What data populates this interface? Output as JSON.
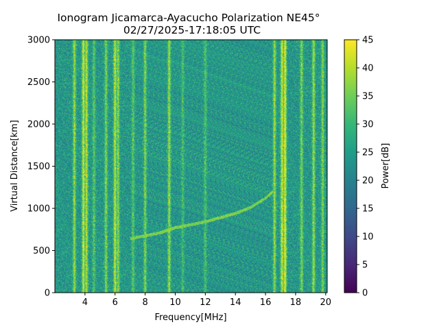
{
  "chart_data": {
    "type": "heatmap",
    "title": "Ionogram Jicamarca-Ayacucho Polarization NE45°",
    "subtitle": "02/27/2025-17:18:05 UTC",
    "xlabel": "Frequency[MHz]",
    "ylabel": "Virtual Distance[km]",
    "xlim": [
      2.0,
      20.1
    ],
    "ylim": [
      0,
      3000
    ],
    "xticks": [
      4,
      6,
      8,
      10,
      12,
      14,
      16,
      18,
      20
    ],
    "yticks": [
      0,
      500,
      1000,
      1500,
      2000,
      2500,
      3000
    ],
    "colorbar": {
      "label": "Power[dB]",
      "range": [
        0,
        45
      ],
      "ticks": [
        0,
        5,
        10,
        15,
        20,
        25,
        30,
        35,
        40,
        45
      ],
      "colormap": "viridis",
      "colors": [
        "#440154",
        "#482878",
        "#3e4a89",
        "#31688e",
        "#26828e",
        "#1f9e89",
        "#35b779",
        "#6ece58",
        "#b5de2b",
        "#fde725"
      ]
    },
    "background_power_db": 24,
    "bright_bands": [
      {
        "freq_mhz": 3.3,
        "power_db": 38
      },
      {
        "freq_mhz": 3.9,
        "power_db": 42
      },
      {
        "freq_mhz": 4.1,
        "power_db": 40
      },
      {
        "freq_mhz": 4.6,
        "power_db": 33
      },
      {
        "freq_mhz": 5.4,
        "power_db": 36
      },
      {
        "freq_mhz": 6.0,
        "power_db": 41
      },
      {
        "freq_mhz": 6.2,
        "power_db": 37
      },
      {
        "freq_mhz": 7.2,
        "power_db": 33
      },
      {
        "freq_mhz": 8.0,
        "power_db": 36
      },
      {
        "freq_mhz": 9.6,
        "power_db": 38
      },
      {
        "freq_mhz": 10.5,
        "power_db": 31
      },
      {
        "freq_mhz": 12.0,
        "power_db": 32
      },
      {
        "freq_mhz": 16.6,
        "power_db": 38
      },
      {
        "freq_mhz": 17.1,
        "power_db": 42
      },
      {
        "freq_mhz": 17.3,
        "power_db": 44
      },
      {
        "freq_mhz": 18.4,
        "power_db": 36
      },
      {
        "freq_mhz": 19.2,
        "power_db": 38
      },
      {
        "freq_mhz": 19.8,
        "power_db": 36
      }
    ],
    "echo_trace": {
      "power_db": 36,
      "points": [
        {
          "freq_mhz": 7.0,
          "distance_km": 640
        },
        {
          "freq_mhz": 9.0,
          "distance_km": 710
        },
        {
          "freq_mhz": 10.0,
          "distance_km": 770
        },
        {
          "freq_mhz": 12.0,
          "distance_km": 840
        },
        {
          "freq_mhz": 14.0,
          "distance_km": 940
        },
        {
          "freq_mhz": 15.0,
          "distance_km": 1010
        },
        {
          "freq_mhz": 16.0,
          "distance_km": 1120
        },
        {
          "freq_mhz": 16.5,
          "distance_km": 1200
        }
      ]
    }
  }
}
